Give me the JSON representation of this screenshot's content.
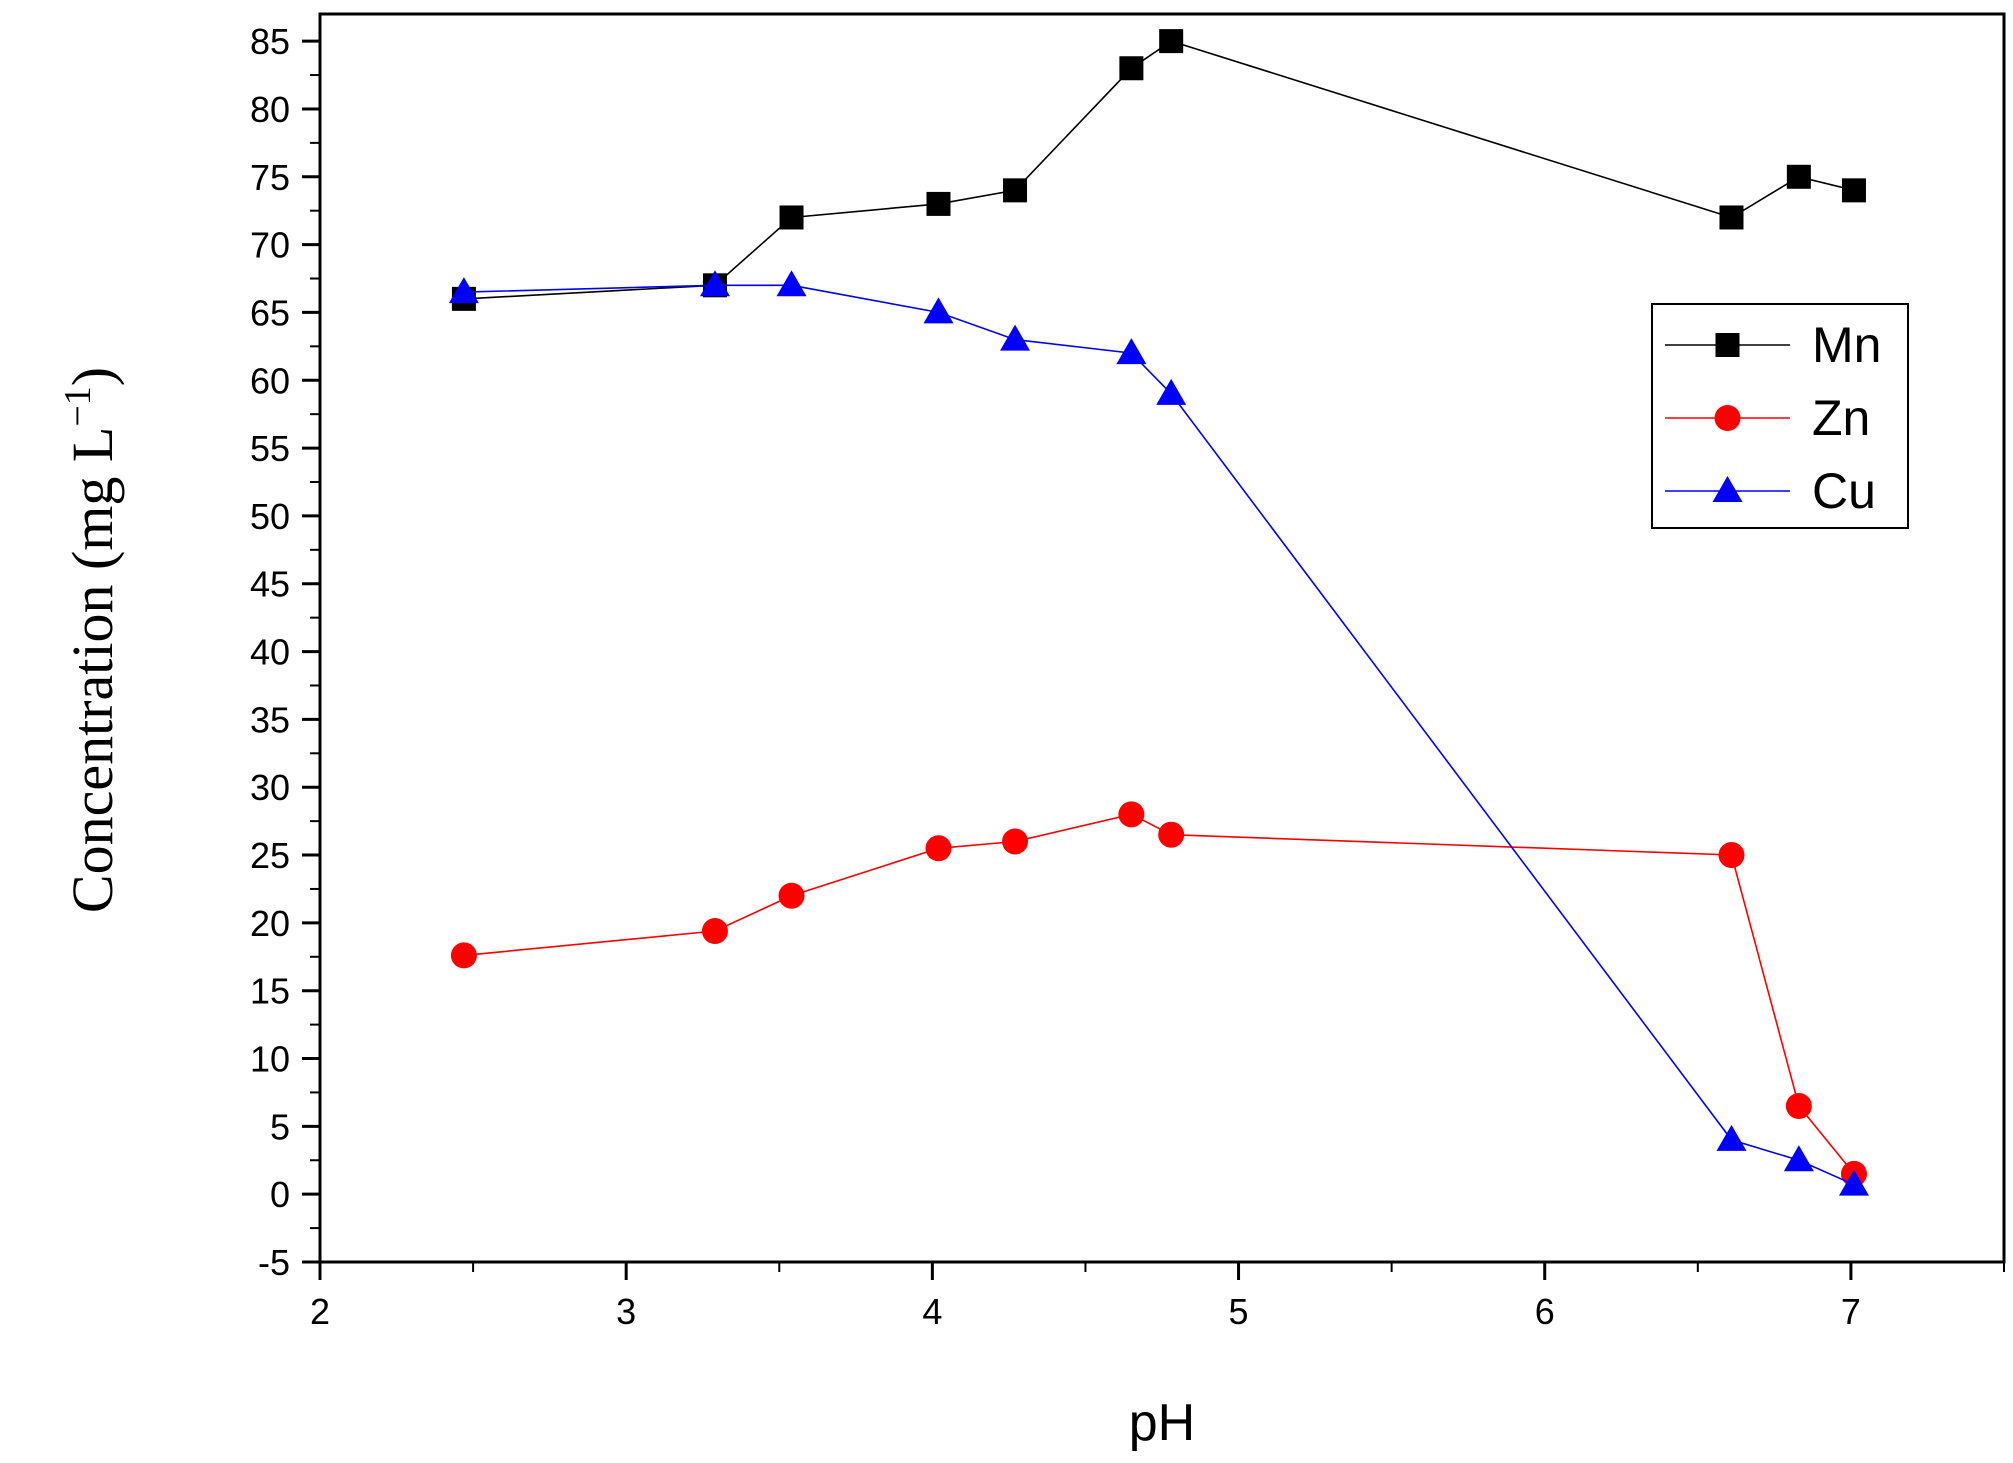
{
  "chart_data": {
    "type": "line",
    "title": "",
    "xlabel": "pH",
    "ylabel_main": "Concentration (mg L",
    "ylabel_sup": "−1",
    "ylabel_close": ")",
    "xlim": [
      2,
      7.5
    ],
    "ylim": [
      -5,
      87
    ],
    "x_ticks": [
      2,
      3,
      4,
      5,
      6,
      7
    ],
    "x_tick_labels": [
      "2",
      "3",
      "4",
      "5",
      "6",
      "7"
    ],
    "y_ticks": [
      -5,
      0,
      5,
      10,
      15,
      20,
      25,
      30,
      35,
      40,
      45,
      50,
      55,
      60,
      65,
      70,
      75,
      80,
      85
    ],
    "y_tick_labels": [
      "-5",
      "0",
      "5",
      "10",
      "15",
      "20",
      "25",
      "30",
      "35",
      "40",
      "45",
      "50",
      "55",
      "60",
      "65",
      "70",
      "75",
      "80",
      "85"
    ],
    "grid": false,
    "legend_position": "right",
    "series": [
      {
        "name": "Mn",
        "color": "#000000",
        "marker": "square",
        "x": [
          2.47,
          3.29,
          3.54,
          4.02,
          4.27,
          4.65,
          4.78,
          6.61,
          6.83,
          7.01
        ],
        "values": [
          66,
          67,
          72,
          73,
          74,
          83,
          85,
          72,
          75,
          74
        ]
      },
      {
        "name": "Zn",
        "color": "#ff0000",
        "marker": "circle",
        "x": [
          2.47,
          3.29,
          3.54,
          4.02,
          4.27,
          4.65,
          4.78,
          6.61,
          6.83,
          7.01
        ],
        "values": [
          17.6,
          19.4,
          22.0,
          25.5,
          26.0,
          28.0,
          26.5,
          25.0,
          6.5,
          1.5
        ]
      },
      {
        "name": "Cu",
        "color": "#0000ff",
        "marker": "triangle",
        "x": [
          2.47,
          3.29,
          3.54,
          4.02,
          4.27,
          4.65,
          4.78,
          6.61,
          6.83,
          7.01
        ],
        "values": [
          66.5,
          67,
          67,
          65,
          63,
          62,
          59,
          4.0,
          2.5,
          0.7
        ]
      }
    ]
  }
}
